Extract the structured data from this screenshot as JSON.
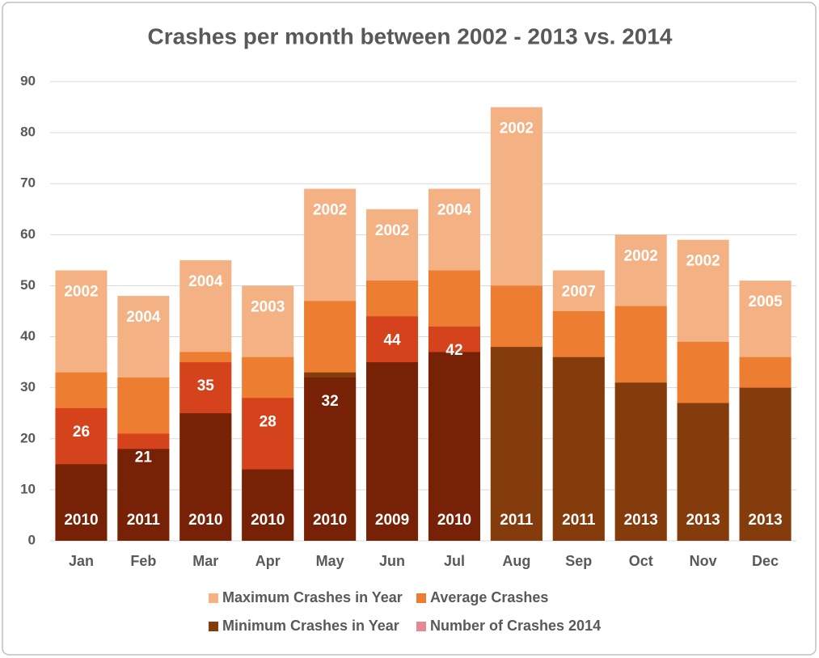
{
  "chart_data": {
    "type": "overlap_bar",
    "title": "Crashes per month between 2002 - 2013 vs. 2014",
    "categories": [
      "Jan",
      "Feb",
      "Mar",
      "Apr",
      "May",
      "Jun",
      "Jul",
      "Aug",
      "Sep",
      "Oct",
      "Nov",
      "Dec"
    ],
    "series": [
      {
        "name": "Maximum Crashes in Year",
        "color": "#f4b183",
        "values": [
          53,
          48,
          55,
          50,
          69,
          65,
          69,
          85,
          53,
          60,
          59,
          51
        ],
        "years": [
          "2002",
          "2004",
          "2004",
          "2003",
          "2002",
          "2002",
          "2004",
          "2002",
          "2007",
          "2002",
          "2002",
          "2005"
        ]
      },
      {
        "name": "Average Crashes",
        "color": "#ed7d31",
        "values": [
          33,
          32,
          37,
          36,
          47,
          51,
          53,
          50,
          45,
          46,
          39,
          36
        ]
      },
      {
        "name": "Minimum Crashes in Year",
        "color": "#843c0c",
        "values": [
          15,
          18,
          25,
          14,
          33,
          35,
          37,
          38,
          36,
          31,
          27,
          30
        ],
        "years": [
          "2010",
          "2011",
          "2010",
          "2010",
          "2010",
          "2009",
          "2010",
          "2011",
          "2011",
          "2013",
          "2013",
          "2013"
        ]
      },
      {
        "name": "Number of Crashes 2014",
        "color": "#e68992",
        "blend": "multiply",
        "values": [
          26,
          21,
          35,
          28,
          32,
          44,
          42,
          null,
          null,
          null,
          null,
          null
        ]
      }
    ],
    "ylim": [
      0,
      90
    ],
    "yticks": [
      0,
      10,
      20,
      30,
      40,
      50,
      60,
      70,
      80,
      90
    ],
    "grid": true
  }
}
